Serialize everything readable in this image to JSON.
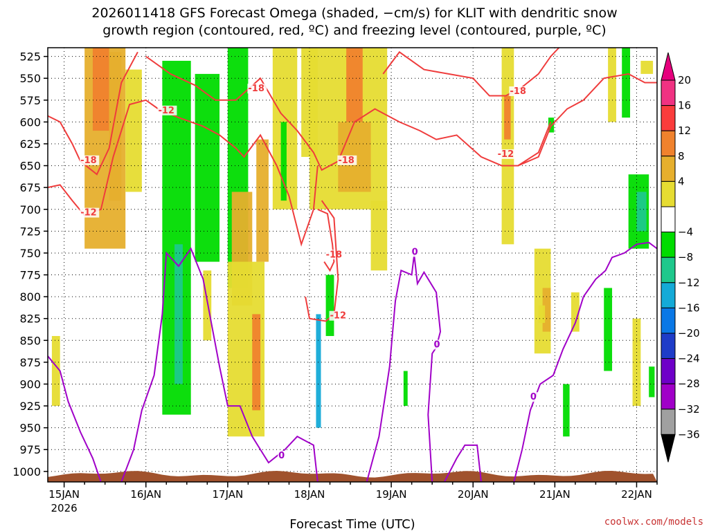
{
  "chart_data": {
    "type": "heatmap",
    "title_line1": "2026011418 GFS Forecast Omega (shaded, −cm/s) for KLIT with dendritic snow",
    "title_line2": "growth region (contoured, red, ºC) and freezing level (contoured, purple, ºC)",
    "xlabel": "Forecast Time (UTC)",
    "x_ticks": [
      {
        "day": 15,
        "label": "15JAN",
        "sublabel": "2026"
      },
      {
        "day": 16,
        "label": "16JAN"
      },
      {
        "day": 17,
        "label": "17JAN"
      },
      {
        "day": 18,
        "label": "18JAN"
      },
      {
        "day": 19,
        "label": "19JAN"
      },
      {
        "day": 20,
        "label": "20JAN"
      },
      {
        "day": 21,
        "label": "21JAN"
      },
      {
        "day": 22,
        "label": "22JAN"
      }
    ],
    "x_range": [
      14.8,
      22.25
    ],
    "y_ticks": [
      525,
      550,
      575,
      600,
      625,
      650,
      675,
      700,
      725,
      750,
      775,
      800,
      825,
      850,
      875,
      900,
      925,
      950,
      975,
      1000
    ],
    "y_range": [
      515,
      1012
    ],
    "colorbar": {
      "labels": [
        "20",
        "16",
        "12",
        "8",
        "4",
        "−4",
        "−8",
        "−12",
        "−16",
        "−20",
        "−24",
        "−28",
        "−32",
        "−36"
      ],
      "colors": [
        "#f03282",
        "#fa3c3c",
        "#f0822d",
        "#e6af2d",
        "#e6dc32",
        "#ffffff",
        "#00dc00",
        "#1ec88c",
        "#14aad7",
        "#0a78e6",
        "#1e3cc8",
        "#6e00c8",
        "#a000c8",
        "#a0a0a0"
      ],
      "over_color": "#e6007d",
      "under_color": "#000000"
    },
    "omega_regions": [
      {
        "value": 8,
        "t": [
          15.25,
          15.75
        ],
        "p": [
          515,
          745
        ]
      },
      {
        "value": 12,
        "t": [
          15.35,
          15.55
        ],
        "p": [
          515,
          610
        ]
      },
      {
        "value": 8,
        "t": [
          15.55,
          15.7
        ],
        "p": [
          520,
          690
        ]
      },
      {
        "value": 4,
        "t": [
          15.75,
          15.95
        ],
        "p": [
          540,
          680
        ]
      },
      {
        "value": 4,
        "t": [
          14.85,
          14.95
        ],
        "p": [
          845,
          925
        ]
      },
      {
        "value": -8,
        "t": [
          16.2,
          16.55
        ],
        "p": [
          530,
          935
        ]
      },
      {
        "value": -12,
        "t": [
          16.35,
          16.45
        ],
        "p": [
          740,
          900
        ]
      },
      {
        "value": -8,
        "t": [
          16.6,
          16.9
        ],
        "p": [
          545,
          760
        ]
      },
      {
        "value": 4,
        "t": [
          16.7,
          16.8
        ],
        "p": [
          770,
          850
        ]
      },
      {
        "value": -8,
        "t": [
          17.0,
          17.25
        ],
        "p": [
          515,
          790
        ]
      },
      {
        "value": 8,
        "t": [
          17.05,
          17.3
        ],
        "p": [
          680,
          810
        ]
      },
      {
        "value": 4,
        "t": [
          17.0,
          17.45
        ],
        "p": [
          760,
          960
        ]
      },
      {
        "value": 12,
        "t": [
          17.3,
          17.4
        ],
        "p": [
          820,
          930
        ]
      },
      {
        "value": 8,
        "t": [
          17.35,
          17.5
        ],
        "p": [
          620,
          760
        ]
      },
      {
        "value": 4,
        "t": [
          17.55,
          17.85
        ],
        "p": [
          515,
          700
        ]
      },
      {
        "value": -8,
        "t": [
          17.65,
          17.72
        ],
        "p": [
          600,
          690
        ]
      },
      {
        "value": 4,
        "t": [
          17.9,
          18.1
        ],
        "p": [
          515,
          640
        ]
      },
      {
        "value": -16,
        "t": [
          18.08,
          18.14
        ],
        "p": [
          820,
          950
        ]
      },
      {
        "value": -8,
        "t": [
          18.2,
          18.3
        ],
        "p": [
          775,
          845
        ]
      },
      {
        "value": 4,
        "t": [
          18.0,
          18.95
        ],
        "p": [
          515,
          700
        ]
      },
      {
        "value": 12,
        "t": [
          18.45,
          18.65
        ],
        "p": [
          515,
          600
        ]
      },
      {
        "value": 8,
        "t": [
          18.35,
          18.75
        ],
        "p": [
          600,
          680
        ]
      },
      {
        "value": 4,
        "t": [
          18.75,
          18.95
        ],
        "p": [
          690,
          770
        ]
      },
      {
        "value": -8,
        "t": [
          19.15,
          19.2
        ],
        "p": [
          885,
          925
        ]
      },
      {
        "value": 4,
        "t": [
          20.35,
          20.5
        ],
        "p": [
          515,
          740
        ]
      },
      {
        "value": 12,
        "t": [
          20.38,
          20.46
        ],
        "p": [
          570,
          620
        ]
      },
      {
        "value": 4,
        "t": [
          20.75,
          20.95
        ],
        "p": [
          745,
          865
        ]
      },
      {
        "value": 8,
        "t": [
          20.85,
          20.95
        ],
        "p": [
          790,
          840
        ]
      },
      {
        "value": -8,
        "t": [
          20.92,
          20.99
        ],
        "p": [
          595,
          612
        ]
      },
      {
        "value": 4,
        "t": [
          21.2,
          21.3
        ],
        "p": [
          795,
          840
        ]
      },
      {
        "value": 4,
        "t": [
          21.65,
          21.75
        ],
        "p": [
          515,
          600
        ]
      },
      {
        "value": -8,
        "t": [
          21.82,
          21.92
        ],
        "p": [
          515,
          595
        ]
      },
      {
        "value": -8,
        "t": [
          21.6,
          21.7
        ],
        "p": [
          790,
          885
        ]
      },
      {
        "value": -8,
        "t": [
          21.9,
          22.15
        ],
        "p": [
          660,
          745
        ]
      },
      {
        "value": -12,
        "t": [
          22.0,
          22.12
        ],
        "p": [
          680,
          725
        ]
      },
      {
        "value": 4,
        "t": [
          21.95,
          22.05
        ],
        "p": [
          825,
          925
        ]
      },
      {
        "value": 4,
        "t": [
          22.05,
          22.2
        ],
        "p": [
          530,
          545
        ]
      },
      {
        "value": -8,
        "t": [
          22.15,
          22.22
        ],
        "p": [
          880,
          915
        ]
      },
      {
        "value": 4,
        "t": [
          20.8,
          20.88
        ],
        "p": [
          810,
          830
        ]
      },
      {
        "value": -8,
        "t": [
          21.1,
          21.18
        ],
        "p": [
          900,
          960
        ]
      }
    ],
    "red_contours": [
      {
        "label": "-18",
        "label_t": 15.2,
        "label_p": 647,
        "points": [
          [
            14.8,
            593
          ],
          [
            14.95,
            600
          ],
          [
            15.1,
            625
          ],
          [
            15.2,
            645
          ],
          [
            15.4,
            660
          ],
          [
            15.55,
            630
          ],
          [
            15.7,
            555
          ],
          [
            15.9,
            520
          ]
        ]
      },
      {
        "label": "-12",
        "label_t": 15.2,
        "label_p": 707,
        "points": [
          [
            14.8,
            675
          ],
          [
            14.95,
            672
          ],
          [
            15.1,
            690
          ],
          [
            15.25,
            707
          ],
          [
            15.45,
            700
          ],
          [
            15.6,
            640
          ],
          [
            15.8,
            580
          ],
          [
            16.0,
            575
          ],
          [
            16.15,
            585
          ]
        ]
      },
      {
        "label": "-12",
        "label_t": 16.15,
        "label_p": 590,
        "points": [
          [
            16.15,
            585
          ],
          [
            16.4,
            595
          ],
          [
            16.7,
            605
          ],
          [
            16.9,
            615
          ],
          [
            17.1,
            630
          ],
          [
            17.2,
            640
          ],
          [
            17.4,
            615
          ],
          [
            17.6,
            650
          ],
          [
            17.75,
            685
          ],
          [
            17.9,
            740
          ],
          [
            18.05,
            700
          ],
          [
            18.1,
            650
          ]
        ]
      },
      {
        "label": "-18",
        "label_t": 17.25,
        "label_p": 565,
        "points": [
          [
            16.0,
            525
          ],
          [
            16.3,
            545
          ],
          [
            16.6,
            558
          ],
          [
            16.85,
            575
          ],
          [
            17.1,
            575
          ],
          [
            17.4,
            550
          ],
          [
            17.65,
            590
          ],
          [
            17.85,
            610
          ],
          [
            18.05,
            635
          ],
          [
            18.15,
            655
          ],
          [
            18.35,
            645
          ]
        ]
      },
      {
        "label": "-18",
        "label_t": 18.35,
        "label_p": 647,
        "points": [
          [
            18.35,
            645
          ],
          [
            18.55,
            600
          ],
          [
            18.8,
            585
          ],
          [
            19.1,
            600
          ],
          [
            19.35,
            610
          ],
          [
            19.55,
            620
          ],
          [
            19.8,
            615
          ],
          [
            20.1,
            640
          ],
          [
            20.35,
            650
          ],
          [
            20.55,
            650
          ],
          [
            20.8,
            635
          ],
          [
            20.95,
            600
          ]
        ]
      },
      {
        "label": "-12",
        "label_t": 20.3,
        "label_p": 640,
        "points": [
          [
            20.55,
            650
          ],
          [
            20.8,
            640
          ],
          [
            20.95,
            605
          ],
          [
            21.15,
            585
          ],
          [
            21.35,
            575
          ],
          [
            21.6,
            550
          ],
          [
            21.9,
            545
          ],
          [
            22.1,
            555
          ],
          [
            22.25,
            555
          ]
        ]
      },
      {
        "label": "-18",
        "label_t": 20.45,
        "label_p": 568,
        "points": [
          [
            18.9,
            545
          ],
          [
            19.1,
            520
          ],
          [
            19.4,
            540
          ],
          [
            19.7,
            545
          ],
          [
            20.0,
            550
          ],
          [
            20.2,
            570
          ],
          [
            20.4,
            570
          ],
          [
            20.6,
            560
          ],
          [
            20.8,
            545
          ],
          [
            20.95,
            525
          ],
          [
            21.05,
            515
          ]
        ]
      },
      {
        "label": "-18",
        "label_t": 18.2,
        "label_p": 755,
        "points": [
          [
            18.1,
            700
          ],
          [
            18.22,
            705
          ],
          [
            18.28,
            740
          ],
          [
            18.3,
            760
          ],
          [
            18.25,
            770
          ],
          [
            18.18,
            760
          ]
        ]
      },
      {
        "label": "-12",
        "label_t": 18.25,
        "label_p": 825,
        "points": [
          [
            17.95,
            800
          ],
          [
            18.0,
            825
          ],
          [
            18.2,
            828
          ],
          [
            18.3,
            820
          ],
          [
            18.35,
            780
          ],
          [
            18.3,
            710
          ],
          [
            18.15,
            690
          ]
        ]
      }
    ],
    "purple_contours": [
      {
        "label": "",
        "label_t": 14.8,
        "label_p": 868,
        "points": [
          [
            14.8,
            868
          ],
          [
            14.95,
            885
          ],
          [
            15.05,
            920
          ],
          [
            15.2,
            955
          ],
          [
            15.35,
            985
          ],
          [
            15.45,
            1012
          ]
        ]
      },
      {
        "label": "",
        "label_t": 15.7,
        "label_p": 1005,
        "points": [
          [
            15.7,
            1012
          ],
          [
            15.85,
            975
          ],
          [
            15.95,
            930
          ],
          [
            16.1,
            890
          ],
          [
            16.2,
            820
          ],
          [
            16.25,
            750
          ],
          [
            16.4,
            765
          ],
          [
            16.55,
            745
          ],
          [
            16.7,
            780
          ],
          [
            16.8,
            830
          ],
          [
            16.9,
            880
          ],
          [
            17.0,
            925
          ],
          [
            17.15,
            925
          ],
          [
            17.3,
            960
          ],
          [
            17.5,
            990
          ],
          [
            17.7,
            975
          ],
          [
            17.85,
            960
          ],
          [
            18.05,
            970
          ],
          [
            18.1,
            1012
          ]
        ]
      },
      {
        "label": "0",
        "label_t": 17.62,
        "label_p": 985,
        "points": [
          [
            17.62,
            985
          ],
          [
            17.62,
            985
          ]
        ]
      },
      {
        "label": "0",
        "label_t": 19.25,
        "label_p": 752,
        "points": [
          [
            18.7,
            1012
          ],
          [
            18.85,
            960
          ],
          [
            18.98,
            880
          ],
          [
            19.05,
            805
          ],
          [
            19.12,
            770
          ],
          [
            19.25,
            775
          ],
          [
            19.28,
            752
          ],
          [
            19.32,
            785
          ],
          [
            19.4,
            772
          ],
          [
            19.55,
            795
          ],
          [
            19.6,
            840
          ],
          [
            19.55,
            858
          ],
          [
            19.5,
            865
          ],
          [
            19.45,
            935
          ],
          [
            19.5,
            1012
          ]
        ]
      },
      {
        "label": "0",
        "label_t": 19.52,
        "label_p": 858,
        "points": [
          [
            19.52,
            858
          ],
          [
            19.52,
            858
          ]
        ]
      },
      {
        "label": "",
        "label_t": 19.65,
        "label_p": 1010,
        "points": [
          [
            19.65,
            1012
          ],
          [
            19.8,
            985
          ],
          [
            19.9,
            970
          ],
          [
            20.05,
            970
          ],
          [
            20.1,
            1012
          ]
        ]
      },
      {
        "label": "0",
        "label_t": 20.7,
        "label_p": 918,
        "points": [
          [
            20.5,
            1012
          ],
          [
            20.6,
            975
          ],
          [
            20.7,
            930
          ],
          [
            20.82,
            900
          ],
          [
            20.98,
            890
          ],
          [
            21.1,
            860
          ],
          [
            21.25,
            830
          ],
          [
            21.35,
            800
          ],
          [
            21.5,
            780
          ],
          [
            21.62,
            770
          ],
          [
            21.7,
            755
          ],
          [
            21.85,
            750
          ],
          [
            22.0,
            740
          ],
          [
            22.15,
            738
          ],
          [
            22.25,
            745
          ]
        ]
      }
    ]
  },
  "credit": "coolwx.com/models"
}
